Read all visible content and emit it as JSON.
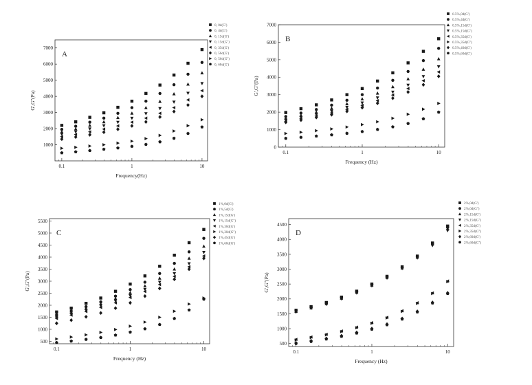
{
  "chart_data": [
    {
      "type": "scatter",
      "panel_label": "A",
      "xlabel": "Frequency(Hz)",
      "ylabel": "G',G''(Pa)",
      "x_scale": "log",
      "xlim": [
        0.08,
        12
      ],
      "ylim": [
        0,
        7500
      ],
      "x_ticks": [
        0.1,
        1,
        10
      ],
      "x_tick_labels": [
        "0.1",
        "1",
        "10"
      ],
      "y_ticks": [
        1000,
        2000,
        3000,
        4000,
        5000,
        6000,
        7000
      ],
      "y_tick_labels": [
        "1000",
        "2000",
        "3000",
        "4000",
        "5000",
        "6000",
        "7000"
      ],
      "legend_position": "top-right",
      "x": [
        0.1,
        0.158,
        0.251,
        0.398,
        0.631,
        1.0,
        1.585,
        2.512,
        3.981,
        6.31,
        10.0
      ],
      "series": [
        {
          "name": "0, 0d(G')",
          "marker": "square",
          "values": [
            2200,
            2420,
            2700,
            2980,
            3320,
            3700,
            4180,
            4700,
            5320,
            6050,
            6900
          ]
        },
        {
          "name": "0, 4d(G')",
          "marker": "circle",
          "values": [
            1950,
            2150,
            2400,
            2650,
            2950,
            3300,
            3700,
            4180,
            4720,
            5370,
            6100
          ]
        },
        {
          "name": "0, 15d(G')",
          "marker": "triangle-up",
          "values": [
            1800,
            1980,
            2200,
            2420,
            2680,
            2950,
            3290,
            3680,
            4150,
            4750,
            5450
          ]
        },
        {
          "name": "0, 15d(G'')",
          "marker": "triangle-down",
          "values": [
            1650,
            1800,
            1990,
            2180,
            2400,
            2650,
            2930,
            3250,
            3650,
            4200,
            4800
          ]
        },
        {
          "name": "0, 35d(G')",
          "marker": "triangle-left",
          "values": [
            1500,
            1640,
            1800,
            1970,
            2170,
            2400,
            2650,
            2950,
            3300,
            3780,
            4350
          ]
        },
        {
          "name": "0, 56d(G')",
          "marker": "diamond",
          "values": [
            1350,
            1480,
            1620,
            1780,
            1960,
            2170,
            2420,
            2720,
            3060,
            3460,
            4000
          ]
        },
        {
          "name": "0, 56d(G'')",
          "marker": "triangle-right",
          "values": [
            780,
            840,
            920,
            1000,
            1100,
            1220,
            1380,
            1580,
            1850,
            2180,
            2550
          ]
        },
        {
          "name": "0, 68d(G')",
          "marker": "pentagon",
          "values": [
            500,
            560,
            640,
            720,
            800,
            900,
            1020,
            1180,
            1400,
            1700,
            2100
          ]
        }
      ]
    },
    {
      "type": "scatter",
      "panel_label": "B",
      "xlabel": "Frequency (Hz)",
      "ylabel": "G',G''(Pa)",
      "x_scale": "log",
      "xlim": [
        0.08,
        12
      ],
      "ylim": [
        0,
        7000
      ],
      "x_ticks": [
        0.1,
        1,
        10
      ],
      "x_tick_labels": [
        "0.1",
        "1",
        "10"
      ],
      "y_ticks": [
        0,
        1000,
        2000,
        3000,
        4000,
        5000,
        6000,
        7000
      ],
      "y_tick_labels": [
        "0",
        "1000",
        "2000",
        "3000",
        "4000",
        "5000",
        "6000",
        "7000"
      ],
      "legend_position": "top-right",
      "x": [
        0.1,
        0.158,
        0.251,
        0.398,
        0.631,
        1.0,
        1.585,
        2.512,
        3.981,
        6.31,
        10.0
      ],
      "series": [
        {
          "name": "0.5%,0d(G')",
          "marker": "square",
          "values": [
            1980,
            2200,
            2420,
            2700,
            3000,
            3350,
            3780,
            4250,
            4820,
            5480,
            6200
          ]
        },
        {
          "name": "0.5%,4d(G')",
          "marker": "circle",
          "values": [
            1750,
            1950,
            2150,
            2400,
            2680,
            3000,
            3380,
            3820,
            4330,
            4950,
            5650
          ]
        },
        {
          "name": "0.5%,15d(G')",
          "marker": "triangle-up",
          "values": [
            1650,
            1820,
            2000,
            2220,
            2470,
            2750,
            3080,
            3450,
            3900,
            4450,
            5050
          ]
        },
        {
          "name": "0.5%,15d(G'')",
          "marker": "triangle-down",
          "values": [
            1550,
            1700,
            1870,
            2060,
            2280,
            2530,
            2820,
            3150,
            3550,
            4040,
            4600
          ]
        },
        {
          "name": "0.5%,35d(G')",
          "marker": "triangle-left",
          "values": [
            1480,
            1620,
            1780,
            1960,
            2160,
            2390,
            2660,
            2980,
            3350,
            3800,
            4300
          ]
        },
        {
          "name": "0.5%,35d(G'')",
          "marker": "triangle-right",
          "values": [
            780,
            850,
            940,
            1040,
            1150,
            1290,
            1450,
            1650,
            1880,
            2170,
            2500
          ]
        },
        {
          "name": "0.5%,40d(G')",
          "marker": "diamond",
          "values": [
            1420,
            1550,
            1700,
            1860,
            2050,
            2260,
            2510,
            2800,
            3150,
            3570,
            4050
          ]
        },
        {
          "name": "0.5%,60d(G')",
          "marker": "pentagon",
          "values": [
            500,
            560,
            630,
            700,
            790,
            890,
            1010,
            1160,
            1350,
            1620,
            2000
          ]
        }
      ]
    },
    {
      "type": "scatter",
      "panel_label": "C",
      "xlabel": "Frequency (Hz)",
      "ylabel": "G',G''(Pa)",
      "x_scale": "log",
      "xlim": [
        0.08,
        12
      ],
      "ylim": [
        400,
        5600
      ],
      "x_ticks": [
        0.1,
        1,
        10
      ],
      "x_tick_labels": [
        "0.1",
        "1",
        "10"
      ],
      "y_ticks": [
        500,
        1000,
        1500,
        2000,
        2500,
        3000,
        3500,
        4000,
        4500,
        5000,
        5500
      ],
      "y_tick_labels": [
        "500",
        "1000",
        "1500",
        "2000",
        "2500",
        "3000",
        "3500",
        "4000",
        "4500",
        "5000",
        "5500"
      ],
      "legend_position": "top-right",
      "x": [
        0.1,
        0.158,
        0.251,
        0.398,
        0.631,
        1.0,
        1.585,
        2.512,
        3.981,
        6.31,
        10.0
      ],
      "series": [
        {
          "name": "1%,0d(G')",
          "marker": "square",
          "values": [
            1720,
            1880,
            2080,
            2300,
            2580,
            2880,
            3220,
            3620,
            4080,
            4600,
            5150
          ]
        },
        {
          "name": "1%,5d(G')",
          "marker": "circle",
          "values": [
            1600,
            1760,
            1940,
            2140,
            2380,
            2650,
            2960,
            3320,
            3740,
            4220,
            4780
          ]
        },
        {
          "name": "1%,15d(G')",
          "marker": "triangle-up",
          "values": [
            1550,
            1700,
            1870,
            2060,
            2280,
            2520,
            2800,
            3120,
            3500,
            3950,
            4450
          ]
        },
        {
          "name": "1%,15d(G'')",
          "marker": "triangle-down",
          "values": [
            1500,
            1640,
            1800,
            1980,
            2180,
            2400,
            2660,
            2960,
            3320,
            3730,
            4200
          ]
        },
        {
          "name": "1%,30d(G')",
          "marker": "triangle-left",
          "values": [
            1450,
            1590,
            1740,
            1910,
            2100,
            2320,
            2570,
            2860,
            3200,
            3600,
            4050
          ]
        },
        {
          "name": "1%,30d(G'')",
          "marker": "triangle-right",
          "values": [
            600,
            680,
            770,
            870,
            990,
            1130,
            1300,
            1500,
            1750,
            2050,
            2300
          ]
        },
        {
          "name": "1%,45d(G')",
          "marker": "diamond",
          "values": [
            1250,
            1380,
            1520,
            1680,
            1880,
            2100,
            2380,
            2700,
            3080,
            3500,
            3950
          ]
        },
        {
          "name": "1%,60d(G')",
          "marker": "pentagon",
          "values": [
            450,
            510,
            580,
            660,
            760,
            880,
            1020,
            1200,
            1450,
            1800,
            2250
          ]
        }
      ]
    },
    {
      "type": "scatter",
      "panel_label": "D",
      "xlabel": "Frequency (Hz)",
      "ylabel": "G',G''(Pa)",
      "x_scale": "log",
      "xlim": [
        0.08,
        12
      ],
      "ylim": [
        400,
        4700
      ],
      "x_ticks": [
        0.1,
        1,
        10
      ],
      "x_tick_labels": [
        "0.1",
        "1",
        "10"
      ],
      "y_ticks": [
        500,
        1000,
        1500,
        2000,
        2500,
        3000,
        3500,
        4000,
        4500
      ],
      "y_tick_labels": [
        "500",
        "1000",
        "1500",
        "2000",
        "2500",
        "3000",
        "3500",
        "4000",
        "4500"
      ],
      "legend_position": "top-right",
      "x": [
        0.1,
        0.158,
        0.251,
        0.398,
        0.631,
        1.0,
        1.585,
        2.512,
        3.981,
        6.31,
        10.0
      ],
      "series": [
        {
          "name": "2%,0d(G')",
          "marker": "square",
          "values": [
            1620,
            1740,
            1880,
            2060,
            2260,
            2500,
            2760,
            3080,
            3440,
            3880,
            4450
          ]
        },
        {
          "name": "2%,0d(G'')",
          "marker": "circle",
          "values": [
            1600,
            1720,
            1860,
            2040,
            2240,
            2480,
            2740,
            3060,
            3420,
            3860,
            4400
          ]
        },
        {
          "name": "2%,15d(G')",
          "marker": "triangle-up",
          "values": [
            1580,
            1700,
            1840,
            2020,
            2220,
            2460,
            2720,
            3040,
            3400,
            3840,
            4350
          ]
        },
        {
          "name": "2%,15d(G'')",
          "marker": "triangle-down",
          "values": [
            1560,
            1680,
            1820,
            2000,
            2200,
            2440,
            2700,
            3020,
            3380,
            3800,
            4300
          ]
        },
        {
          "name": "2%,35d(G')",
          "marker": "triangle-left",
          "values": [
            640,
            720,
            810,
            920,
            1050,
            1200,
            1380,
            1600,
            1870,
            2200,
            2600
          ]
        },
        {
          "name": "2%,35d(G'')",
          "marker": "triangle-right",
          "values": [
            620,
            700,
            790,
            900,
            1030,
            1180,
            1360,
            1580,
            1850,
            2180,
            2580
          ]
        },
        {
          "name": "2%,60d(G')",
          "marker": "diamond",
          "values": [
            520,
            590,
            670,
            760,
            870,
            1000,
            1150,
            1340,
            1580,
            1880,
            2200
          ]
        },
        {
          "name": "2%,60d(G'')",
          "marker": "pentagon",
          "values": [
            500,
            570,
            650,
            740,
            850,
            980,
            1130,
            1320,
            1560,
            1860,
            2180
          ]
        }
      ]
    }
  ]
}
